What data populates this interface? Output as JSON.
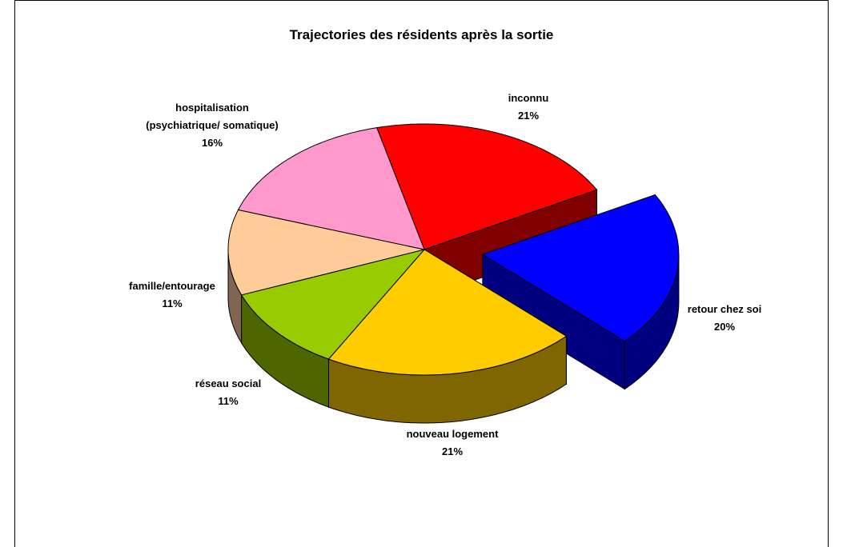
{
  "chart_data": {
    "type": "pie3d",
    "title": "Trajectories des résidents après la sortie",
    "categories": [
      "inconnu",
      "retour chez soi",
      "nouveau logement",
      "réseau social",
      "famille/entourage",
      "hospitalisation\n(psychiatrique/ somatique)"
    ],
    "values": [
      21,
      20,
      21,
      11,
      11,
      16
    ],
    "value_labels": [
      "21%",
      "20%",
      "21%",
      "11%",
      "11%",
      "16%"
    ],
    "colors": [
      "#ff0000",
      "#0000ff",
      "#ffcc00",
      "#99cc00",
      "#ffcc99",
      "#ff99cc"
    ],
    "side_colors": [
      "#800000",
      "#000080",
      "#806600",
      "#4d6600",
      "#806650",
      "#804d66"
    ],
    "exploded": [
      false,
      true,
      false,
      false,
      false,
      false
    ]
  }
}
